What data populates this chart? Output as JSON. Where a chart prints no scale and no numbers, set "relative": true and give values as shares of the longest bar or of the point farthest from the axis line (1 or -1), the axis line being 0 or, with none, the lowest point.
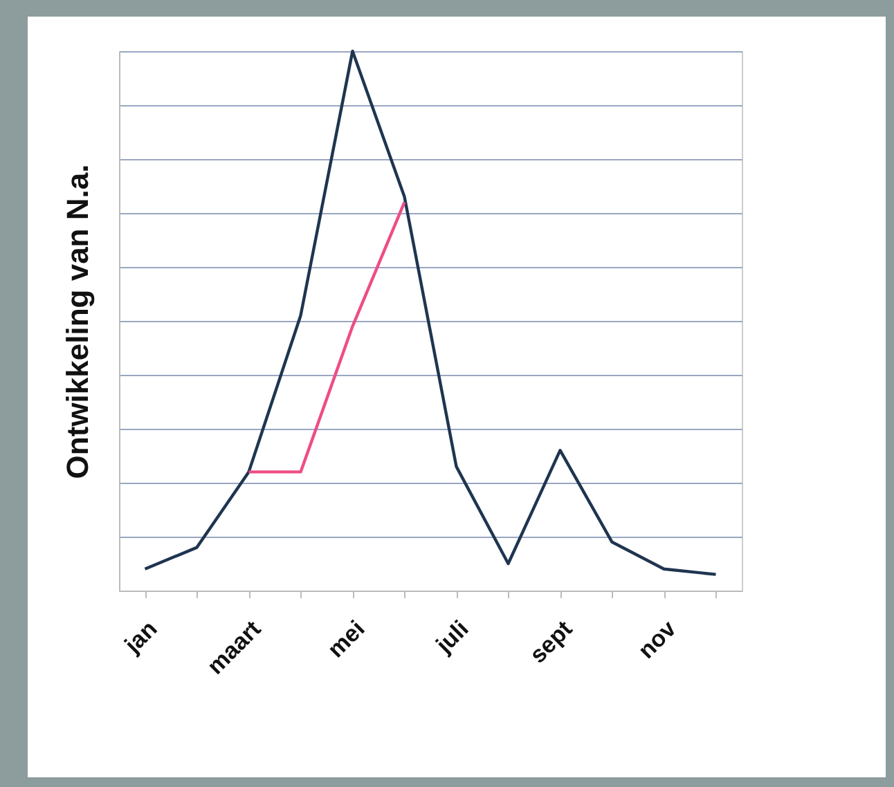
{
  "chart_data": {
    "type": "line",
    "relative": true,
    "ylabel": "Ontwikkeling van N.a.",
    "categories": [
      "jan",
      null,
      "maart",
      null,
      "mei",
      null,
      "juli",
      null,
      "sept",
      null,
      "nov",
      null
    ],
    "series": [
      {
        "color": "#1f3550",
        "values": [
          0.04,
          0.08,
          0.22,
          0.51,
          1,
          0.73,
          0.23,
          0.05,
          0.26,
          0.09,
          0.04,
          0.03
        ]
      },
      {
        "color": "#ee4d86",
        "values": [
          null,
          null,
          0.22,
          0.22,
          0.49,
          0.72,
          null,
          null,
          null,
          null,
          null,
          null
        ]
      }
    ],
    "grid": "y",
    "line_style": "solid"
  }
}
